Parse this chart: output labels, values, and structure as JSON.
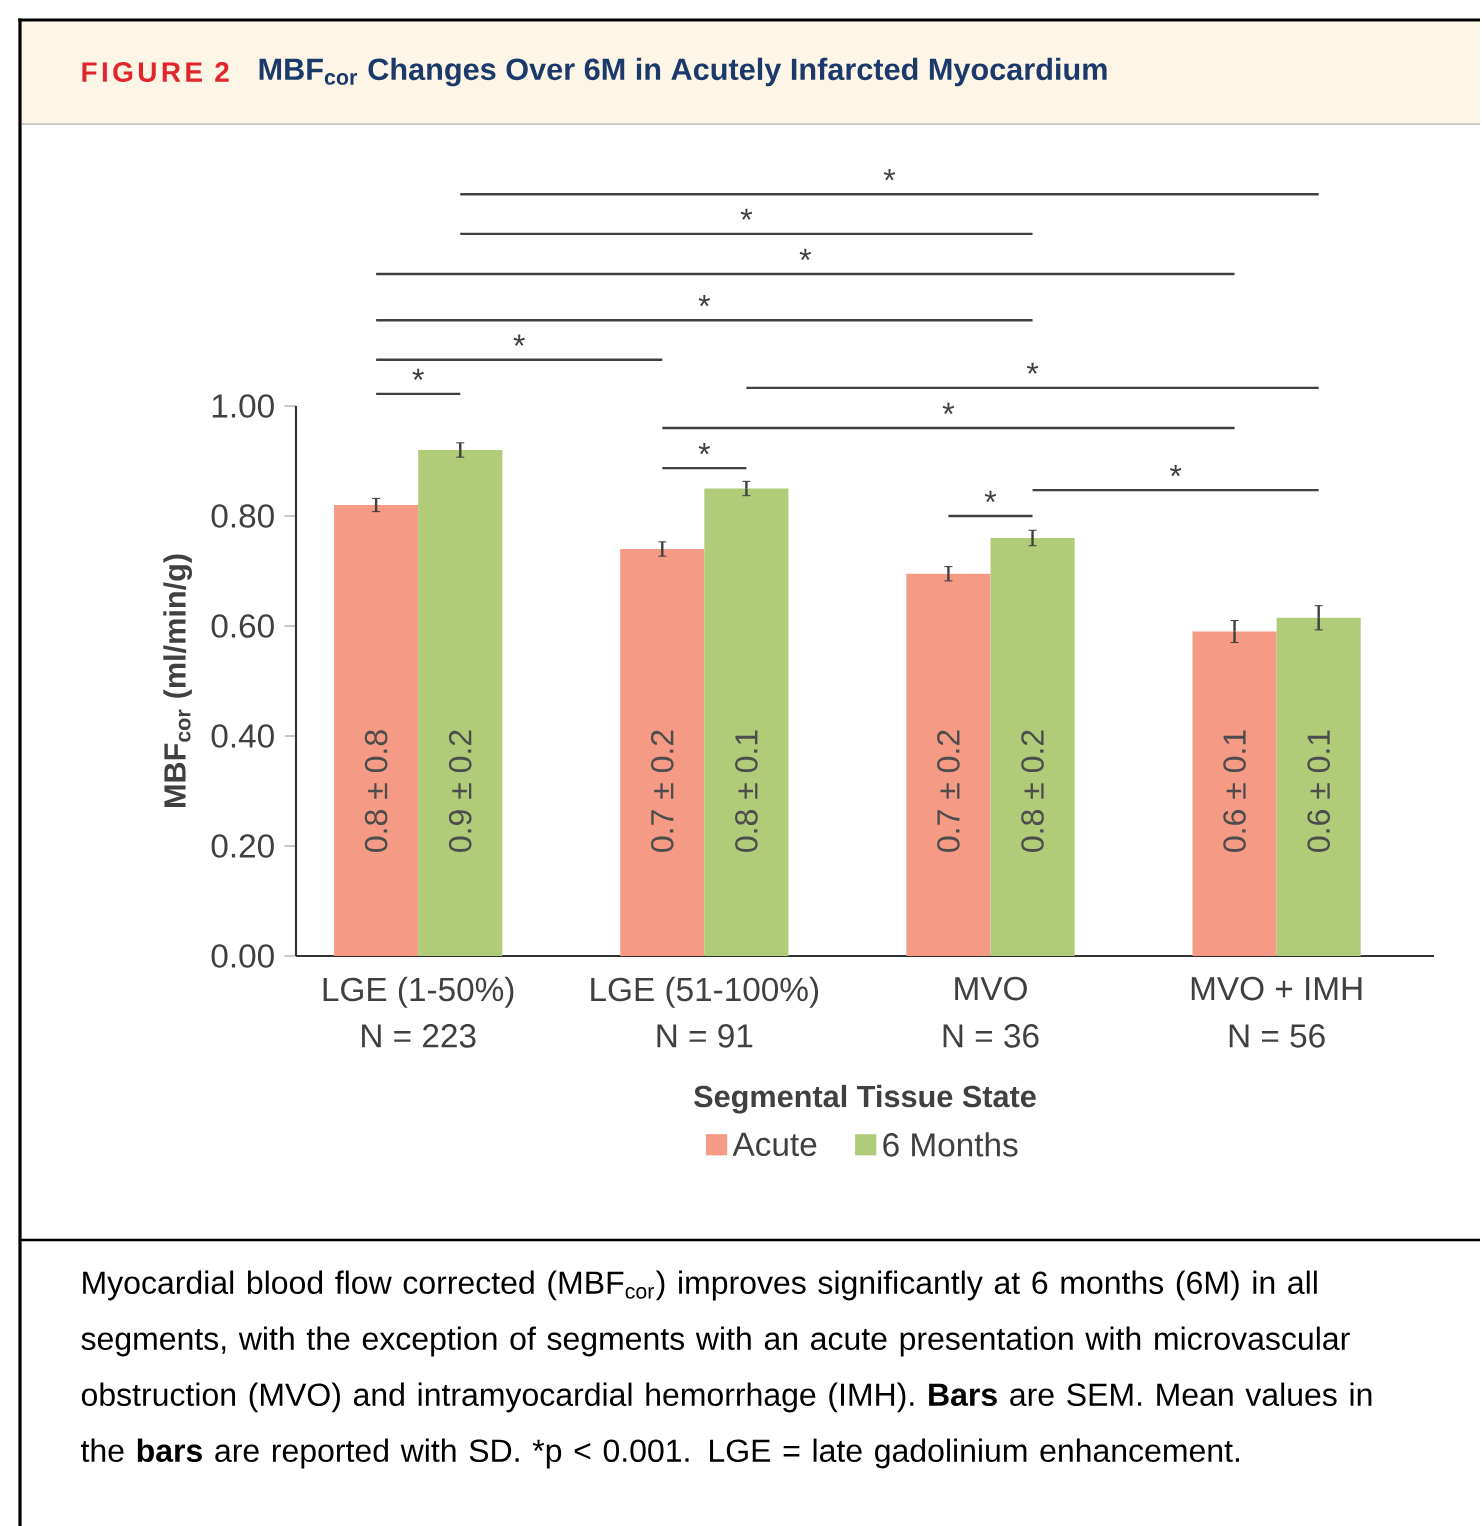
{
  "chart_data": {
    "type": "bar",
    "title": "FIGURE 2",
    "subtitle": "MBF$_{cor}$ Changes Over 6M in Acutely Infarcted Myocardium",
    "categories": [
      "LGE (1-50%)",
      "LGE (51-100%)",
      "MVO",
      "MVO + IMH"
    ],
    "series": [
      {
        "name": "Acute",
        "color": "#f59a84",
        "values": [
          0.82,
          0.74,
          0.695,
          0.59
        ],
        "errors": [
          0.012,
          0.013,
          0.013,
          0.02
        ],
        "value_labels": [
          "0.8 ± 0.8",
          "0.7 ± 0.2",
          "0.7 ± 0.2",
          "0.6 ± 0.1"
        ]
      },
      {
        "name": "6 Months",
        "color": "#b0cc78",
        "values": [
          0.92,
          0.85,
          0.76,
          0.615
        ],
        "errors": [
          0.013,
          0.013,
          0.014,
          0.022
        ],
        "value_labels": [
          "0.9 ± 0.2",
          "0.8 ± 0.1",
          "0.8 ± 0.2",
          "0.6 ± 0.1"
        ]
      }
    ],
    "xlabel": "Segmental Tissue State",
    "ylabel": "MBF$_{cor}$ (ml/min/g)",
    "ylim": [
      0,
      1.0
    ],
    "yticks": [
      {
        "value": 0,
        "label": "0.00"
      },
      {
        "value": 0.2,
        "label": "0.20"
      },
      {
        "value": 0.4,
        "label": "0.40"
      },
      {
        "value": 0.6,
        "label": "0.60"
      },
      {
        "value": 0.8,
        "label": "0.80"
      },
      {
        "value": 1.0,
        "label": "1.00"
      }
    ],
    "legend": "bottom",
    "annotations": [
      "*",
      "*",
      "*",
      "*",
      "*",
      "*",
      "*",
      "*",
      "*",
      "*",
      "*",
      "N = 223",
      "N = 91",
      "N = 36",
      "N = 56",
      "Myocardial blood flow corrected (MBF$_{cor}$) improves significantly at 6 months (6M) in all segments, with the exception of segments with an acute presentation with microvascular obstruction (MVO) and intramyocardial hemorrhage (IMH). **Bars** are SEM. Mean values in the **bars** are reported with SD. *p < 0.001. LGE = late gadolinium enhancement."
    ]
  }
}
